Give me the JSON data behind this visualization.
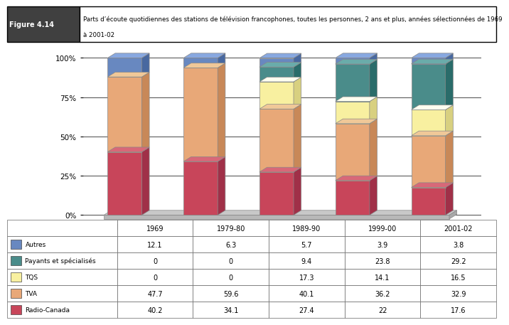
{
  "years": [
    "1969",
    "1979-80",
    "1989-90",
    "1999-00",
    "2001-02"
  ],
  "series_order": [
    "Radio-Canada",
    "TVA",
    "TQS",
    "Payants et spécialisés",
    "Autres"
  ],
  "series": {
    "Radio-Canada": [
      40.2,
      34.1,
      27.4,
      22.0,
      17.6
    ],
    "TVA": [
      47.7,
      59.6,
      40.1,
      36.2,
      32.9
    ],
    "TQS": [
      0.0,
      0.0,
      17.3,
      14.1,
      16.5
    ],
    "Payants et spécialisés": [
      0.0,
      0.0,
      9.4,
      23.8,
      29.2
    ],
    "Autres": [
      12.1,
      6.3,
      5.7,
      3.9,
      3.8
    ]
  },
  "face_colors": {
    "Radio-Canada": "#C8455A",
    "TVA": "#E8A878",
    "TQS": "#F8F0A0",
    "Payants et spécialisés": "#4A8C8A",
    "Autres": "#6888C0"
  },
  "side_colors": {
    "Radio-Canada": "#A03048",
    "TVA": "#C88858",
    "TQS": "#D8D080",
    "Payants et spécialisés": "#2A6C6A",
    "Autres": "#4868A0"
  },
  "top_colors": {
    "Radio-Canada": "#D86878",
    "TVA": "#F0C898",
    "TQS": "#FFFFF0",
    "Payants et spécialisés": "#6AACAA",
    "Autres": "#88A8E0"
  },
  "figure_label": "Figure 4.14",
  "title_line1": "Parts d’écoute quotidiennes des stations de télévision francophones, toutes les personnes, 2 ans et plus, années sélectionnées de 1969",
  "title_line2": "à 2001-02",
  "ylabel_ticks": [
    "0%",
    "25%",
    "50%",
    "75%",
    "100%"
  ],
  "ytick_vals": [
    0,
    25,
    50,
    75,
    100
  ],
  "table_rows": [
    "Autres",
    "Payants et spécialisés",
    "TQS",
    "TVA",
    "Radio-Canada"
  ],
  "table_data": {
    "Autres": [
      12.1,
      6.3,
      5.7,
      3.9,
      3.8
    ],
    "Payants et spécialisés": [
      0,
      0,
      9.4,
      23.8,
      29.2
    ],
    "TQS": [
      0,
      0,
      17.3,
      14.1,
      16.5
    ],
    "TVA": [
      47.7,
      59.6,
      40.1,
      36.2,
      32.9
    ],
    "Radio-Canada": [
      40.2,
      34.1,
      27.4,
      22,
      17.6
    ]
  },
  "bg_color": "#FFFFFF",
  "grid_color": "#000000",
  "bar_edge_color": "#888888",
  "base_color": "#C8C8C8",
  "base_edge_color": "#888888"
}
